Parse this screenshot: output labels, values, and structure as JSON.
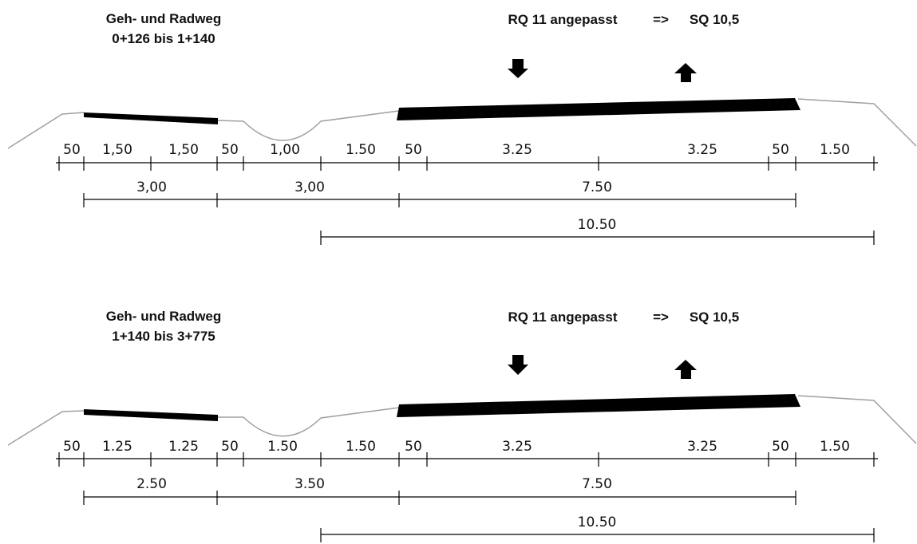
{
  "colors": {
    "ink": "#000000",
    "ground": "#a0a0a0"
  },
  "sections": [
    {
      "title_line1": "Geh- und Radweg",
      "title_line2": "0+126 bis 1+140",
      "rq_label": "RQ 11 angepasst",
      "arrow": "=>",
      "sq_label": "SQ 10,5",
      "row1": [
        "50",
        "1,50",
        "1,50",
        "50",
        "1,00",
        "1.50",
        "50",
        "3.25",
        "3.25",
        "50",
        "1.50"
      ],
      "row2": [
        "3,00",
        "3,00",
        "7.50"
      ],
      "row3": [
        "10.50"
      ]
    },
    {
      "title_line1": "Geh- und Radweg",
      "title_line2": "1+140 bis 3+775",
      "rq_label": "RQ 11 angepasst",
      "arrow": "=>",
      "sq_label": "SQ 10,5",
      "row1": [
        "50",
        "1.25",
        "1.25",
        "50",
        "1.50",
        "1.50",
        "50",
        "3.25",
        "3.25",
        "50",
        "1.50"
      ],
      "row2": [
        "2.50",
        "3.50",
        "7.50"
      ],
      "row3": [
        "10.50"
      ]
    }
  ]
}
